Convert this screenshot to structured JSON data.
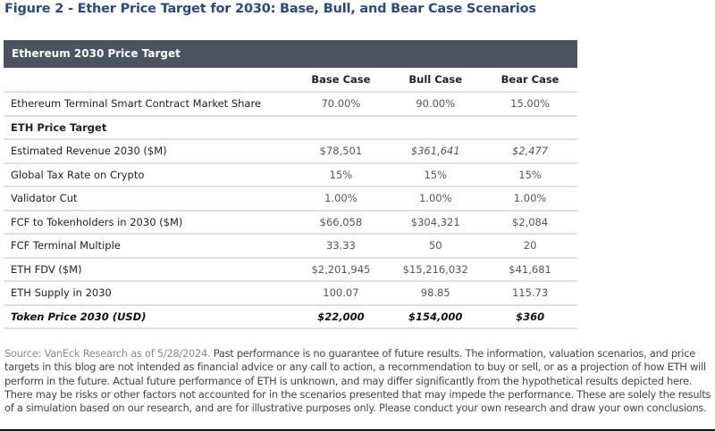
{
  "title": "Figure 2 - Ether Price Target for 2030: Base, Bull, and Bear Case Scenarios",
  "table": {
    "header": "Ethereum 2030 Price Target",
    "columns": [
      "Base Case",
      "Bull Case",
      "Bear Case"
    ],
    "rows": [
      {
        "label": "Ethereum Terminal Smart Contract Market Share",
        "values": [
          "70.00%",
          "90.00%",
          "15.00%"
        ]
      },
      {
        "label": "ETH Price Target",
        "values": [
          "",
          "",
          ""
        ]
      },
      {
        "label": "Estimated Revenue 2030 ($M)",
        "values": [
          "$78,501",
          "$361,641",
          "$2,477"
        ]
      },
      {
        "label": "Global Tax Rate on Crypto",
        "values": [
          "15%",
          "15%",
          "15%"
        ]
      },
      {
        "label": "Validator Cut",
        "values": [
          "1.00%",
          "1.00%",
          "1.00%"
        ]
      },
      {
        "label": "FCF to Tokenholders in 2030 ($M)",
        "values": [
          "$66,058",
          "$304,321",
          "$2,084"
        ]
      },
      {
        "label": "FCF Terminal Multiple",
        "values": [
          "33.33",
          "50",
          "20"
        ]
      },
      {
        "label": "ETH FDV ($M)",
        "values": [
          "$2,201,945",
          "$15,216,032",
          "$41,681"
        ]
      },
      {
        "label": "ETH Supply in 2030",
        "values": [
          "100.07",
          "98.85",
          "115.73"
        ]
      },
      {
        "label": "Token Price 2030 (USD)",
        "values": [
          "$22,000",
          "$154,000",
          "$360"
        ]
      }
    ]
  },
  "note": {
    "source": "Source: VanEck Research as of 5/28/2024.",
    "text": " Past performance is no guarantee of future results. The information, valuation scenarios, and price targets in this blog are not intended as financial advice or any call to action, a recommendation to buy or sell, or as a projection of how ETH will perform in the future. Actual future performance of ETH is unknown, and may differ significantly from the hypothetical results depicted here. There may be risks or other factors not accounted for in the scenarios presented that may impede the performance. These are solely the results of a simulation based on our research, and are for illustrative purposes only. Please conduct your own research and draw your own conclusions."
  }
}
